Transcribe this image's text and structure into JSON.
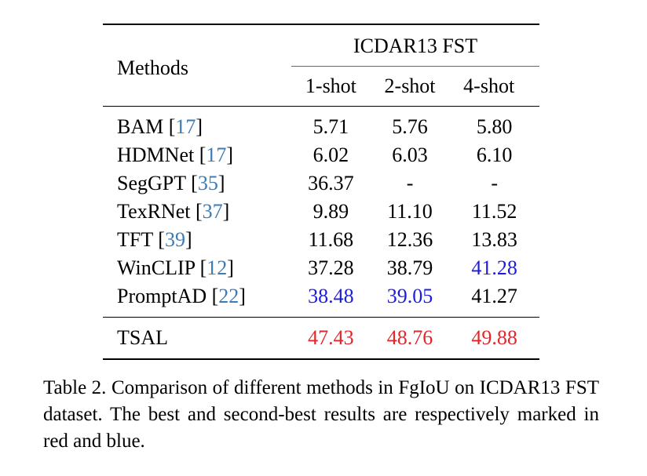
{
  "table": {
    "header": {
      "method_label": "Methods",
      "group_label": "ICDAR13 FST",
      "shots": [
        "1-shot",
        "2-shot",
        "4-shot"
      ]
    },
    "rows": [
      {
        "name": "BAM ",
        "cite": "17",
        "values": [
          "5.71",
          "5.76",
          "5.80"
        ]
      },
      {
        "name": "HDMNet ",
        "cite": "17",
        "values": [
          "6.02",
          "6.03",
          "6.10"
        ]
      },
      {
        "name": "SegGPT ",
        "cite": "35",
        "values": [
          "36.37",
          "-",
          "-"
        ]
      },
      {
        "name": "TexRNet ",
        "cite": "37",
        "values": [
          "9.89",
          "11.10",
          "11.52"
        ]
      },
      {
        "name": "TFT ",
        "cite": "39",
        "values": [
          "11.68",
          "12.36",
          "13.83"
        ]
      },
      {
        "name": "WinCLIP ",
        "cite": "12",
        "values": [
          "37.28",
          "38.79",
          "41.28"
        ]
      },
      {
        "name": "PromptAD ",
        "cite": "22",
        "values": [
          "38.48",
          "39.05",
          "41.27"
        ]
      }
    ],
    "ours": {
      "name": "TSAL",
      "values": [
        "47.43",
        "48.76",
        "49.88"
      ]
    },
    "highlight_colors": {
      "best": "#e3262a",
      "second": "#1c1ce0",
      "citation": "#3b7cb6"
    }
  },
  "caption": "Table 2. Comparison of different methods in FgIoU on ICDAR13 FST dataset.  The best and second-best results are respectively marked in red and blue."
}
